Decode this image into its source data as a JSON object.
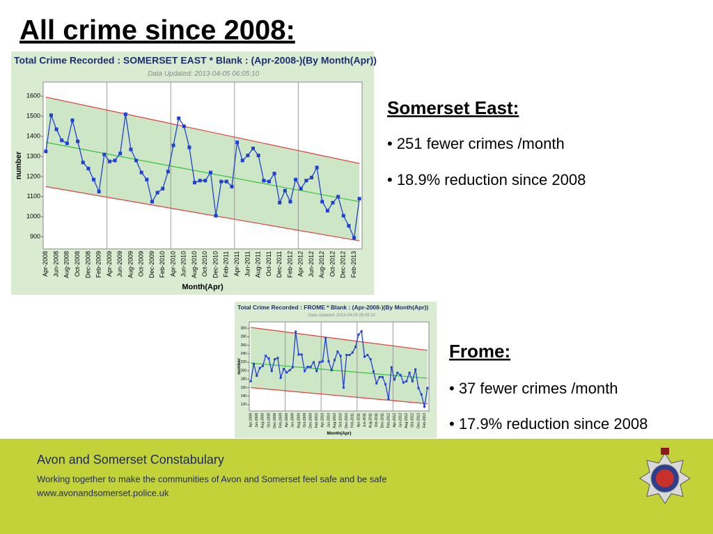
{
  "slide": {
    "title": "All crime since 2008:",
    "sections": [
      {
        "heading": "Somerset East:",
        "bullets": [
          "• 251 fewer crimes /month",
          "• 18.9% reduction since 2008"
        ]
      },
      {
        "heading": "Frome:",
        "bullets": [
          "• 37 fewer crimes /month",
          "• 17.9% reduction since 2008"
        ]
      }
    ],
    "footer": {
      "organisation": "Avon and Somerset Constabulary",
      "tagline": "Working together to make the communities of Avon and Somerset feel safe and be safe",
      "url": "www.avonandsomerset.police.uk"
    }
  },
  "chart_data": [
    {
      "type": "line",
      "title": "Total Crime Recorded : SOMERSET EAST * Blank : (Apr-2008-)(By Month(Apr))",
      "subtitle": "Data Updated: 2013-04-05 06:05:10",
      "y_label": "number",
      "x_label": "Month(Apr)",
      "color": "#1f3fd6",
      "categories": [
        "Apr-2008",
        null,
        "Jun-2008",
        null,
        "Aug-2008",
        null,
        "Oct-2008",
        null,
        "Dec-2008",
        null,
        "Feb-2009",
        null,
        "Apr-2009",
        null,
        "Jun-2009",
        null,
        "Aug-2009",
        null,
        "Oct-2009",
        null,
        "Dec-2009",
        null,
        "Feb-2010",
        null,
        "Apr-2010",
        null,
        "Jun-2010",
        null,
        "Aug-2010",
        null,
        "Oct-2010",
        null,
        "Dec-2010",
        null,
        "Feb-2011",
        null,
        "Apr-2011",
        null,
        "Jun-2011",
        null,
        "Aug-2011",
        null,
        "Oct-2011",
        null,
        "Dec-2011",
        null,
        "Feb-2012",
        null,
        "Apr-2012",
        null,
        "Jun-2012",
        null,
        "Aug-2012",
        null,
        "Oct-2012",
        null,
        "Dec-2012",
        null,
        "Feb-2013",
        null
      ],
      "values": [
        1325,
        1505,
        1435,
        1380,
        1365,
        1480,
        1375,
        1270,
        1240,
        1185,
        1125,
        1310,
        1275,
        1280,
        1315,
        1510,
        1335,
        1280,
        1220,
        1185,
        1075,
        1120,
        1140,
        1225,
        1355,
        1490,
        1450,
        1345,
        1170,
        1180,
        1180,
        1220,
        1005,
        1175,
        1175,
        1150,
        1370,
        1280,
        1305,
        1340,
        1305,
        1180,
        1175,
        1215,
        1070,
        1130,
        1075,
        1185,
        1140,
        1180,
        1195,
        1245,
        1075,
        1030,
        1070,
        1100,
        1005,
        955,
        895,
        1090
      ],
      "bands": {
        "upper": [
          1595,
          1265
        ],
        "trend": [
          1370,
          1075
        ],
        "lower": [
          1150,
          880
        ]
      },
      "ylim": [
        840,
        1670
      ],
      "yticks": [
        900,
        1000,
        1100,
        1200,
        1300,
        1400,
        1500,
        1600
      ]
    },
    {
      "type": "line",
      "title": "Total Crime Recorded : FROME * Blank : (Apr-2008-)(By Month(Apr))",
      "subtitle": "Data Updated: 2013-04-05 06:05:10",
      "y_label": "number",
      "x_label": "Month(Apr)",
      "color": "#1f3fd6",
      "categories": [
        "Apr-2008",
        null,
        "Jun-2008",
        null,
        "Aug-2008",
        null,
        "Oct-2008",
        null,
        "Dec-2008",
        null,
        "Feb-2009",
        null,
        "Apr-2009",
        null,
        "Jun-2009",
        null,
        "Aug-2009",
        null,
        "Oct-2009",
        null,
        "Dec-2009",
        null,
        "Feb-2010",
        null,
        "Apr-2010",
        null,
        "Jun-2010",
        null,
        "Aug-2010",
        null,
        "Oct-2010",
        null,
        "Dec-2010",
        null,
        "Feb-2011",
        null,
        "Apr-2011",
        null,
        "Jun-2011",
        null,
        "Aug-2011",
        null,
        "Oct-2011",
        null,
        "Dec-2011",
        null,
        "Feb-2012",
        null,
        "Apr-2012",
        null,
        "Jun-2012",
        null,
        "Aug-2012",
        null,
        "Oct-2012",
        null,
        "Dec-2012",
        null,
        "Feb-2013",
        null
      ],
      "values": [
        175,
        216,
        188,
        206,
        211,
        235,
        229,
        199,
        227,
        230,
        183,
        204,
        196,
        201,
        208,
        292,
        238,
        238,
        199,
        209,
        209,
        220,
        199,
        220,
        222,
        277,
        222,
        201,
        225,
        245,
        235,
        160,
        237,
        237,
        243,
        256,
        285,
        293,
        233,
        237,
        227,
        198,
        170,
        185,
        185,
        168,
        133,
        208,
        179,
        195,
        190,
        172,
        175,
        195,
        175,
        203,
        159,
        144,
        115,
        159
      ],
      "bands": {
        "upper": [
          302,
          248
        ],
        "trend": [
          218,
          182
        ],
        "lower": [
          160,
          122
        ]
      },
      "ylim": [
        105,
        315
      ],
      "yticks": [
        120,
        140,
        160,
        180,
        200,
        220,
        240,
        260,
        280,
        300
      ]
    }
  ]
}
